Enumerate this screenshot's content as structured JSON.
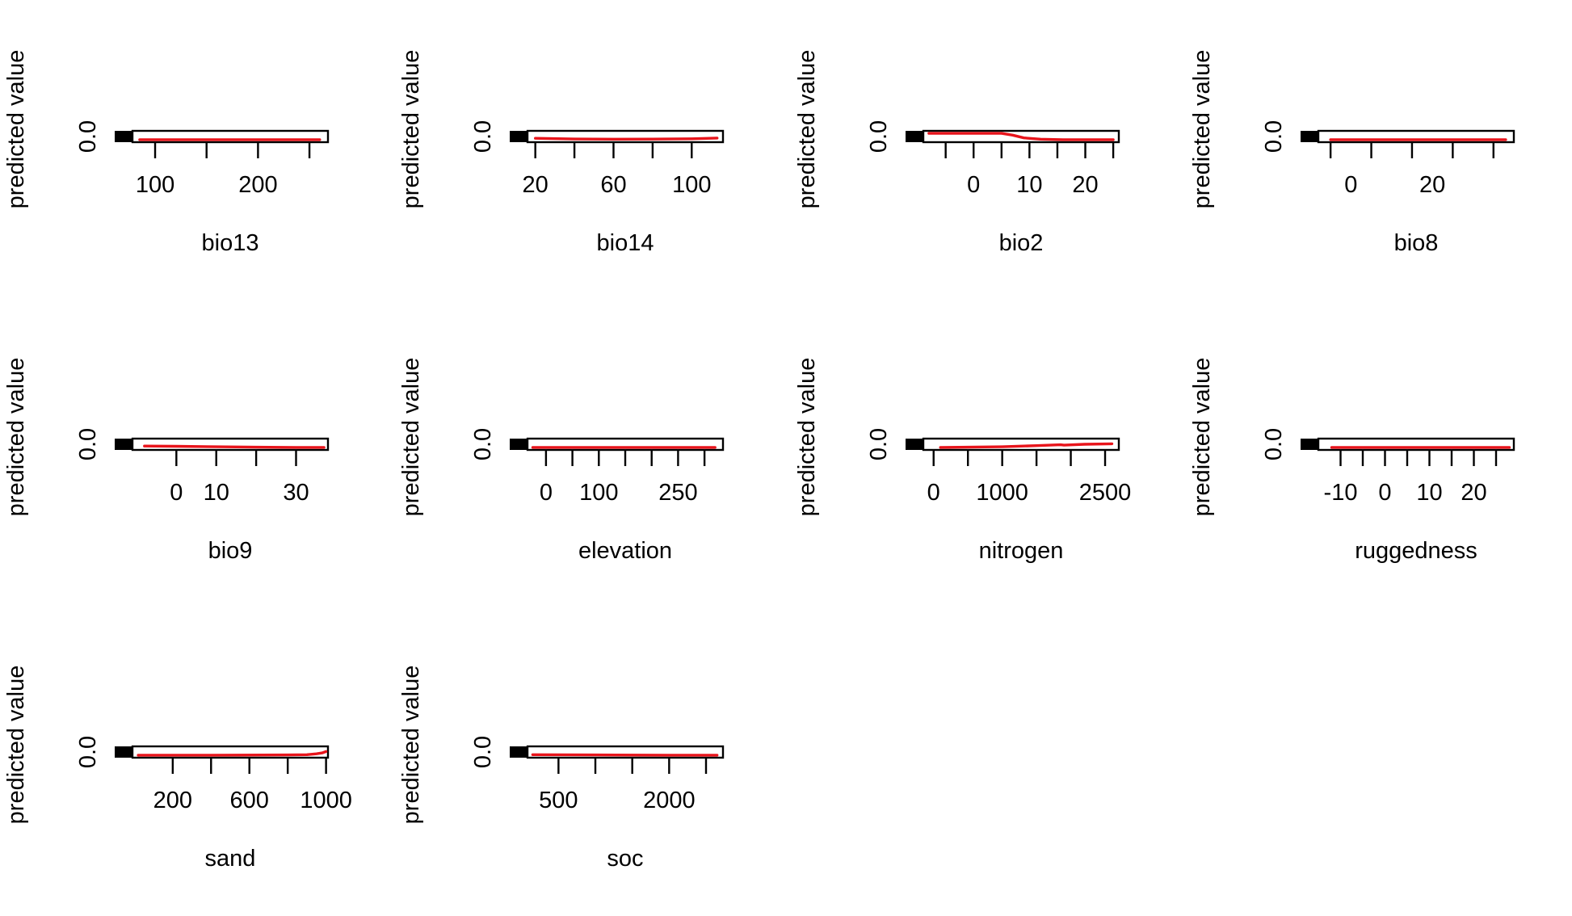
{
  "figure": {
    "background": "#ffffff",
    "curve_color": "#e8141b",
    "secondary_curve_color": "#4a2fbf",
    "rug_color": "#000000"
  },
  "chart_data": [
    {
      "type": "line",
      "xlabel": "bio13",
      "ylabel": "predicted value",
      "xlim": [
        78,
        268
      ],
      "xticks": [
        100,
        150,
        200,
        250
      ],
      "xtick_labels": [
        "100",
        "",
        "200",
        ""
      ],
      "yticks": [
        0.0
      ],
      "ytick_labels": [
        "0.0"
      ],
      "x": [
        85,
        150,
        200,
        260
      ],
      "y": [
        0.0,
        0.0,
        0.0,
        0.0
      ]
    },
    {
      "type": "line",
      "xlabel": "bio14",
      "ylabel": "predicted value",
      "xlim": [
        16,
        116
      ],
      "xticks": [
        20,
        40,
        60,
        80,
        100
      ],
      "xtick_labels": [
        "20",
        "",
        "60",
        "",
        "100"
      ],
      "yticks": [
        0.0
      ],
      "ytick_labels": [
        "0.0"
      ],
      "x": [
        20,
        40,
        60,
        80,
        100,
        113
      ],
      "y": [
        0.03,
        0.015,
        0.01,
        0.012,
        0.02,
        0.035
      ]
    },
    {
      "type": "line",
      "xlabel": "bio2",
      "ylabel": "predicted value",
      "xlim": [
        -9,
        26
      ],
      "xticks": [
        -5,
        0,
        5,
        10,
        15,
        20,
        25
      ],
      "xtick_labels": [
        "",
        "0",
        "",
        "10",
        "",
        "20",
        ""
      ],
      "yticks": [
        0.0
      ],
      "ytick_labels": [
        "0.0"
      ],
      "x": [
        -8,
        -4,
        0,
        5,
        7,
        9,
        12,
        16,
        20,
        25
      ],
      "y": [
        0.14,
        0.14,
        0.14,
        0.14,
        0.1,
        0.04,
        0.01,
        0.0,
        0.0,
        0.0
      ]
    },
    {
      "type": "line",
      "xlabel": "bio8",
      "ylabel": "predicted value",
      "xlim": [
        -8,
        40
      ],
      "xticks": [
        -5,
        5,
        15,
        25,
        35
      ],
      "xtick_labels": [
        "",
        "",
        "",
        "",
        ""
      ],
      "yticks": [
        0.0
      ],
      "ytick_labels": [
        "0.0"
      ],
      "extra_tick_labels": [
        {
          "x": 0,
          "label": "0"
        },
        {
          "x": 20,
          "label": "20"
        }
      ],
      "x": [
        -5,
        10,
        25,
        38
      ],
      "y": [
        0.0,
        0.0,
        0.0,
        0.0
      ]
    },
    {
      "type": "line",
      "xlabel": "bio9",
      "ylabel": "predicted value",
      "xlim": [
        -11,
        38
      ],
      "xticks": [
        0,
        10,
        20,
        30
      ],
      "xtick_labels": [
        "0",
        "10",
        "",
        "30"
      ],
      "yticks": [
        0.0
      ],
      "ytick_labels": [
        "0.0"
      ],
      "x": [
        -8,
        0,
        10,
        20,
        30,
        37
      ],
      "y": [
        0.03,
        0.025,
        0.015,
        0.005,
        0.0,
        0.0
      ]
    },
    {
      "type": "line",
      "xlabel": "elevation",
      "ylabel": "predicted value",
      "xlim": [
        -35,
        335
      ],
      "xticks": [
        0,
        50,
        100,
        150,
        200,
        250,
        300
      ],
      "xtick_labels": [
        "0",
        "",
        "100",
        "",
        "",
        "250",
        ""
      ],
      "yticks": [
        0.0
      ],
      "ytick_labels": [
        "0.0"
      ],
      "x": [
        -25,
        100,
        200,
        320
      ],
      "y": [
        0.0,
        0.0,
        0.0,
        0.0
      ]
    },
    {
      "type": "line",
      "xlabel": "nitrogen",
      "ylabel": "predicted value",
      "xlim": [
        -150,
        2700
      ],
      "xticks": [
        0,
        500,
        1000,
        1500,
        2000,
        2500
      ],
      "xtick_labels": [
        "0",
        "",
        "1000",
        "",
        "",
        "2500"
      ],
      "yticks": [
        0.0
      ],
      "ytick_labels": [
        "0.0"
      ],
      "x": [
        100,
        500,
        1000,
        1500,
        1850,
        1900,
        2200,
        2600
      ],
      "y": [
        0.0,
        0.005,
        0.015,
        0.04,
        0.06,
        0.05,
        0.07,
        0.08
      ]
    },
    {
      "type": "line",
      "xlabel": "ruggedness",
      "ylabel": "predicted value",
      "xlim": [
        -15,
        29
      ],
      "xticks": [
        -10,
        -5,
        0,
        5,
        10,
        15,
        20,
        25
      ],
      "xtick_labels": [
        "-10",
        "",
        "0",
        "",
        "10",
        "",
        "20",
        ""
      ],
      "yticks": [
        0.0
      ],
      "ytick_labels": [
        "0.0"
      ],
      "x": [
        -12,
        0,
        10,
        20,
        28
      ],
      "y": [
        0.0,
        0.0,
        0.0,
        0.0,
        0.0
      ]
    },
    {
      "type": "line",
      "xlabel": "sand",
      "ylabel": "predicted value",
      "xlim": [
        -10,
        1010
      ],
      "xticks": [
        200,
        400,
        600,
        800,
        1000
      ],
      "xtick_labels": [
        "200",
        "",
        "600",
        "",
        "1000"
      ],
      "yticks": [
        0.0
      ],
      "ytick_labels": [
        "0.0"
      ],
      "x": [
        20,
        400,
        800,
        900,
        950,
        980,
        1000
      ],
      "y": [
        0.0,
        0.0,
        0.005,
        0.01,
        0.03,
        0.05,
        0.08
      ]
    },
    {
      "type": "line",
      "xlabel": "soc",
      "ylabel": "predicted value",
      "xlim": [
        80,
        2730
      ],
      "xticks": [
        500,
        1000,
        1500,
        2000,
        2500
      ],
      "xtick_labels": [
        "500",
        "",
        "",
        "2000",
        ""
      ],
      "yticks": [
        0.0
      ],
      "ytick_labels": [
        "0.0"
      ],
      "x": [
        150,
        1000,
        2000,
        2650
      ],
      "y": [
        0.01,
        0.005,
        0.0,
        0.0
      ]
    }
  ]
}
